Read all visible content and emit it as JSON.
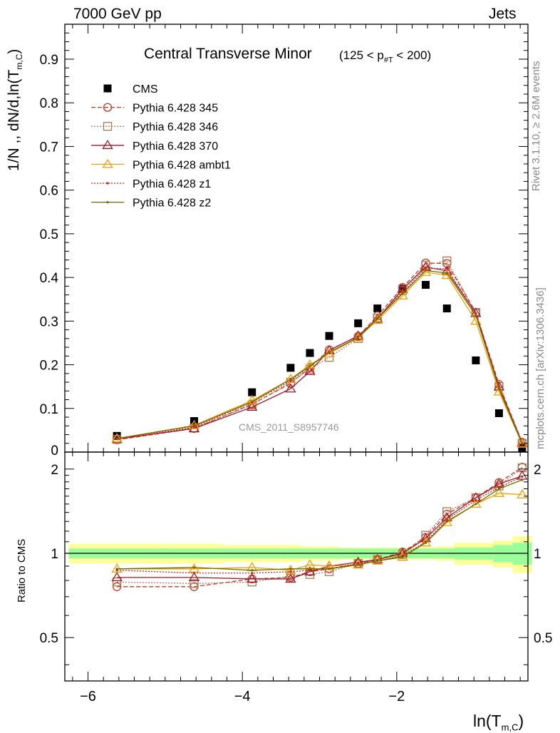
{
  "labels": {
    "top_left": "7000 GeV pp",
    "top_right": "Jets",
    "title_main": "Central Transverse Minor",
    "title_cut_pre": "(125 < p",
    "title_cut_sub": "#T",
    "title_cut_post": " < 200)",
    "ylabel_top_pre": "1/N ,, dN/d,ln(T",
    "ylabel_top_sub": "m,C",
    "ylabel_top_post": ")",
    "ylabel_bottom": "Ratio to CMS",
    "xlabel_pre": "ln(T",
    "xlabel_sub": "m,C",
    "xlabel_post": ")",
    "side_rivet": "Rivet 3.1.10, ≥ 2.6M events",
    "side_mcplots": "mcplots.cern.ch [arXiv:1306.3436]",
    "watermark": "CMS_2011_S8957746"
  },
  "chart_data": [
    {
      "type": "scatter",
      "panel": "main",
      "title": "Central Transverse Minor",
      "xlabel": "ln(T_m,C)",
      "ylabel": "1/N ,, dN/d,ln(T_m,C)",
      "xlim": [
        -6.3,
        -0.3
      ],
      "ylim": [
        0,
        0.98
      ],
      "yticks": [
        0.1,
        0.2,
        0.3,
        0.4,
        0.5,
        0.6,
        0.7,
        0.8,
        0.9
      ],
      "ytick_labels": [
        "0.1",
        "0.2",
        "0.3",
        "0.4",
        "0.5",
        "0.6",
        "0.7",
        "0.8",
        "0.9"
      ],
      "y_zero_label": "0",
      "legend_position": "top-left",
      "x": [
        -5.625,
        -4.625,
        -3.875,
        -3.375,
        -3.125,
        -2.875,
        -2.5,
        -2.25,
        -1.925,
        -1.625,
        -1.35,
        -0.975,
        -0.675,
        -0.375
      ],
      "series": [
        {
          "name": "CMS",
          "color": "#000000",
          "marker": "filled-square",
          "line": "none",
          "values": [
            0.037,
            0.071,
            0.137,
            0.193,
            0.227,
            0.266,
            0.295,
            0.329,
            0.374,
            0.383,
            0.329,
            0.21,
            0.089,
            0.01
          ]
        },
        {
          "name": "Pythia 6.428 345",
          "color": "#c0392b",
          "marker": "open-circle",
          "line": "dashed",
          "values": [
            0.028,
            0.054,
            0.11,
            0.157,
            0.194,
            0.234,
            0.265,
            0.312,
            0.377,
            0.433,
            0.432,
            0.32,
            0.155,
            0.022
          ]
        },
        {
          "name": "Pythia 6.428 346",
          "color": "#b07850",
          "marker": "open-square",
          "line": "dotted",
          "values": [
            0.029,
            0.055,
            0.108,
            0.16,
            0.19,
            0.217,
            0.26,
            0.306,
            0.37,
            0.428,
            0.438,
            0.32,
            0.15,
            0.02
          ]
        },
        {
          "name": "Pythia 6.428 370",
          "color": "#a01828",
          "marker": "open-triangle",
          "line": "solid",
          "values": [
            0.03,
            0.054,
            0.103,
            0.145,
            0.185,
            0.233,
            0.266,
            0.305,
            0.373,
            0.424,
            0.415,
            0.318,
            0.15,
            0.021
          ]
        },
        {
          "name": "Pythia 6.428 ambt1",
          "color": "#f0a000",
          "marker": "open-triangle",
          "line": "solid",
          "values": [
            0.031,
            0.061,
            0.118,
            0.167,
            0.2,
            0.226,
            0.262,
            0.302,
            0.358,
            0.412,
            0.405,
            0.3,
            0.138,
            0.019
          ]
        },
        {
          "name": "Pythia 6.428 z1",
          "color": "#d02020",
          "marker": "dot",
          "line": "dotted",
          "values": [
            0.03,
            0.057,
            0.114,
            0.163,
            0.197,
            0.228,
            0.263,
            0.307,
            0.366,
            0.421,
            0.42,
            0.318,
            0.15,
            0.021
          ]
        },
        {
          "name": "Pythia 6.428 z2",
          "color": "#6b6b00",
          "marker": "dot",
          "line": "solid",
          "values": [
            0.031,
            0.06,
            0.115,
            0.167,
            0.197,
            0.229,
            0.262,
            0.306,
            0.363,
            0.416,
            0.41,
            0.313,
            0.145,
            0.019
          ]
        }
      ]
    },
    {
      "type": "line",
      "panel": "ratio",
      "ylabel": "Ratio to CMS",
      "xlabel": "ln(T_m,C)",
      "xlim": [
        -6.3,
        -0.3
      ],
      "ylim": [
        0.35,
        2.3
      ],
      "yticks": [
        0.5,
        1,
        2
      ],
      "ytick_labels": [
        "0.5",
        "1",
        "2"
      ],
      "xticks": [
        -6,
        -4,
        -2
      ],
      "xtick_labels": [
        "−6",
        "−4",
        "−2"
      ],
      "bin_edges": [
        -6.25,
        -5.0,
        -4.25,
        -3.5,
        -3.25,
        -3.0,
        -2.75,
        -2.375,
        -2.125,
        -1.75,
        -1.5,
        -1.25,
        -0.75,
        -0.5,
        -0.25
      ],
      "band_inner": [
        0.04,
        0.04,
        0.04,
        0.04,
        0.04,
        0.04,
        0.04,
        0.04,
        0.04,
        0.04,
        0.04,
        0.05,
        0.07,
        0.09
      ],
      "band_outer": [
        0.08,
        0.08,
        0.07,
        0.07,
        0.06,
        0.06,
        0.05,
        0.05,
        0.05,
        0.05,
        0.06,
        0.09,
        0.11,
        0.15
      ],
      "band_inner_color": "#99ff99",
      "band_outer_color": "#ffff99",
      "x": [
        -5.625,
        -4.625,
        -3.875,
        -3.375,
        -3.125,
        -2.875,
        -2.5,
        -2.25,
        -1.925,
        -1.625,
        -1.35,
        -0.975,
        -0.675,
        -0.375
      ],
      "series": [
        {
          "name": "Pythia 6.428 345",
          "color": "#c0392b",
          "marker": "open-circle",
          "line": "dashed",
          "values": [
            0.76,
            0.76,
            0.81,
            0.82,
            0.86,
            0.88,
            0.92,
            0.95,
            1.01,
            1.14,
            1.38,
            1.58,
            1.79,
            2.03
          ]
        },
        {
          "name": "Pythia 6.428 346",
          "color": "#b07850",
          "marker": "open-square",
          "line": "dotted",
          "values": [
            0.79,
            0.78,
            0.79,
            0.83,
            0.84,
            0.86,
            0.92,
            0.95,
            0.99,
            1.16,
            1.41,
            1.58,
            1.74,
            2.02
          ]
        },
        {
          "name": "Pythia 6.428 370",
          "color": "#a01828",
          "marker": "open-triangle",
          "line": "solid",
          "values": [
            0.82,
            0.82,
            0.81,
            0.81,
            0.86,
            0.9,
            0.93,
            0.95,
            1.0,
            1.13,
            1.34,
            1.58,
            1.77,
            1.89
          ]
        },
        {
          "name": "Pythia 6.428 ambt1",
          "color": "#f0a000",
          "marker": "open-triangle",
          "line": "solid",
          "values": [
            0.88,
            0.88,
            0.89,
            0.87,
            0.91,
            0.9,
            0.91,
            0.94,
            0.97,
            1.09,
            1.29,
            1.5,
            1.64,
            1.62
          ]
        },
        {
          "name": "Pythia 6.428 z1",
          "color": "#d02020",
          "marker": "dot",
          "line": "dotted",
          "values": [
            0.87,
            0.85,
            0.85,
            0.86,
            0.87,
            0.88,
            0.92,
            0.94,
            0.98,
            1.1,
            1.32,
            1.55,
            1.72,
            1.88
          ]
        },
        {
          "name": "Pythia 6.428 z2",
          "color": "#6b6b00",
          "marker": "dot",
          "line": "solid",
          "values": [
            0.88,
            0.89,
            0.87,
            0.88,
            0.88,
            0.88,
            0.91,
            0.94,
            0.97,
            1.09,
            1.3,
            1.5,
            1.7,
            1.83
          ]
        }
      ]
    }
  ]
}
